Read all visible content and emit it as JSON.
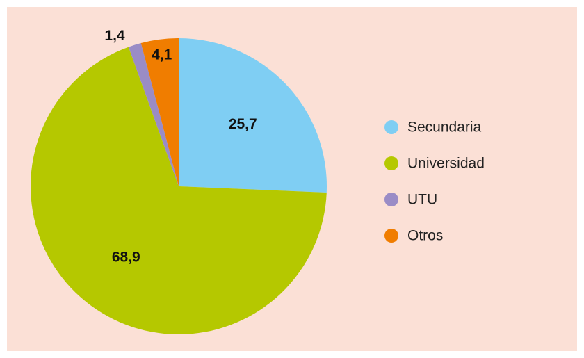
{
  "chart_data": {
    "type": "pie",
    "categories": [
      "Secundaria",
      "Universidad",
      "UTU",
      "Otros"
    ],
    "values": [
      25.7,
      68.9,
      1.4,
      4.1
    ],
    "value_labels": [
      "25,7",
      "68,9",
      "1,4",
      "4,1"
    ],
    "colors": [
      "#7fcef3",
      "#b5c800",
      "#9a8cc6",
      "#f07d00"
    ],
    "legend": "right"
  }
}
